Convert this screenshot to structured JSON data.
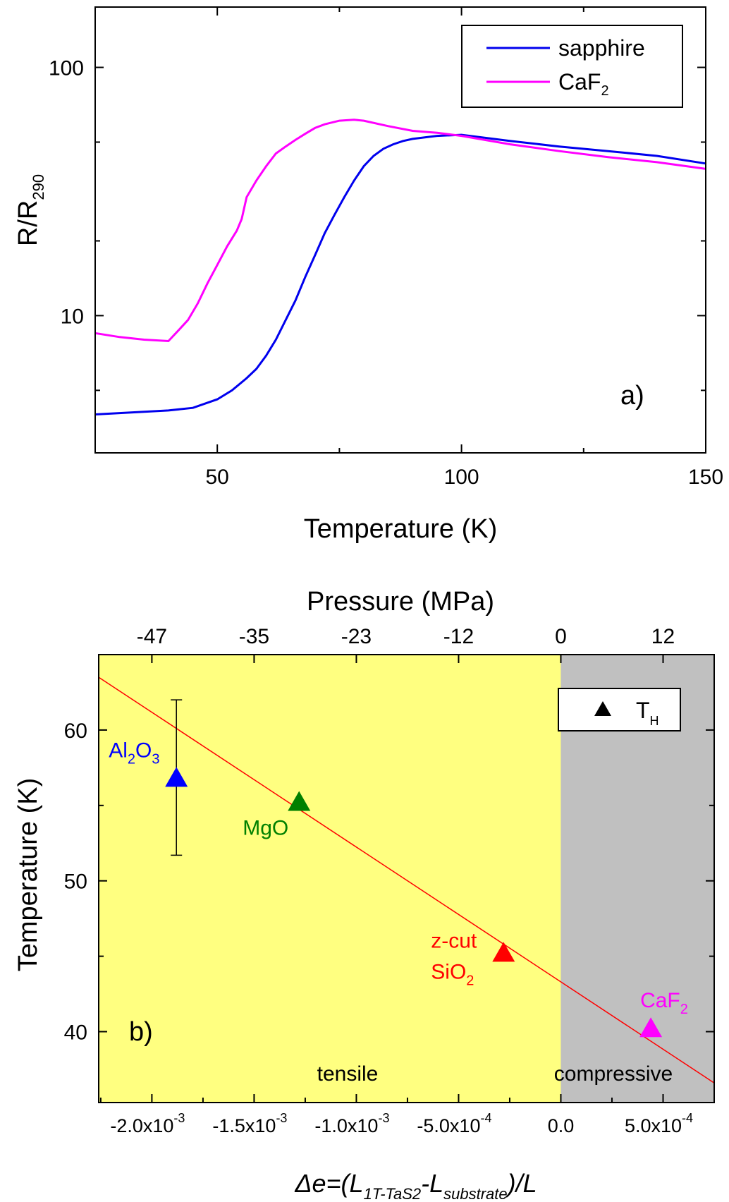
{
  "chart_data": [
    {
      "panel": "a)",
      "type": "line",
      "xlabel": "Temperature (K)",
      "ylabel_main": "R/R",
      "ylabel_sub": "290",
      "xlim": [
        25,
        150
      ],
      "ylim": [
        2.8,
        175
      ],
      "yscale": "log",
      "x_ticks": [
        {
          "value": 50,
          "label": "50"
        },
        {
          "value": 100,
          "label": "100"
        },
        {
          "value": 150,
          "label": "150"
        }
      ],
      "y_ticks": [
        {
          "value": 10,
          "label": "10"
        },
        {
          "value": 100,
          "label": "100"
        }
      ],
      "legend": {
        "position": "top-right",
        "entries": [
          {
            "name": "sapphire",
            "sub": "",
            "color": "#0000ee"
          },
          {
            "name": "CaF",
            "sub": "2",
            "color": "#ff00ff"
          }
        ]
      },
      "series": [
        {
          "name": "sapphire",
          "color": "#0000ee",
          "x": [
            25,
            30,
            35,
            40,
            45,
            50,
            53,
            56,
            58,
            60,
            62,
            64,
            66,
            68,
            70,
            72,
            74,
            76,
            78,
            80,
            82,
            84,
            86,
            88,
            90,
            95,
            100,
            105,
            110,
            120,
            130,
            140,
            150
          ],
          "y": [
            4.0,
            4.05,
            4.1,
            4.15,
            4.25,
            4.6,
            5.0,
            5.6,
            6.1,
            6.9,
            8.0,
            9.6,
            11.5,
            14.3,
            17.5,
            21.5,
            25.5,
            30,
            35,
            40,
            44,
            47,
            49,
            50.5,
            51.5,
            53,
            53.5,
            52,
            50.5,
            48,
            46,
            44,
            41
          ]
        },
        {
          "name": "CaF2",
          "color": "#ff00ff",
          "x": [
            25,
            30,
            35,
            40,
            42,
            44,
            46,
            48,
            50,
            52,
            54,
            55,
            56,
            58,
            60,
            62,
            64,
            66,
            68,
            70,
            72,
            75,
            78,
            80,
            85,
            90,
            95,
            100,
            110,
            120,
            130,
            140,
            150
          ],
          "y": [
            8.5,
            8.2,
            8.0,
            7.9,
            8.7,
            9.6,
            11.2,
            13.5,
            16,
            19,
            22,
            24.5,
            30,
            35,
            40,
            45,
            48,
            51,
            54,
            57,
            59,
            61,
            61.5,
            61,
            58,
            55.5,
            54.5,
            53,
            49,
            46,
            43.5,
            41.5,
            39
          ]
        }
      ]
    },
    {
      "panel": "b)",
      "type": "scatter",
      "xlabel_prefix": "Δe=(L",
      "xlabel_sub1": "1T-TaS2",
      "xlabel_mid": "-L",
      "xlabel_sub2": "substrate",
      "xlabel_suffix": ")/L",
      "ylabel": "Temperature (K)",
      "top_axis_label": "Pressure (MPa)",
      "xlim": [
        -0.00226,
        0.00075
      ],
      "ylim": [
        35.3,
        65
      ],
      "x_ticks": [
        {
          "value": -0.002,
          "label": "-2.0x10",
          "exp": "-3"
        },
        {
          "value": -0.0015,
          "label": "-1.5x10",
          "exp": "-3"
        },
        {
          "value": -0.001,
          "label": "-1.0x10",
          "exp": "-3"
        },
        {
          "value": -0.0005,
          "label": "-5.0x10",
          "exp": "-4"
        },
        {
          "value": 0,
          "label": "0.0",
          "exp": ""
        },
        {
          "value": 0.0005,
          "label": "5.0x10",
          "exp": "-4"
        }
      ],
      "top_ticks": [
        {
          "value": -47,
          "label": "-47"
        },
        {
          "value": -35,
          "label": "-35"
        },
        {
          "value": -23,
          "label": "-23"
        },
        {
          "value": -12,
          "label": "-12"
        },
        {
          "value": 0,
          "label": "0"
        },
        {
          "value": 12,
          "label": "12"
        }
      ],
      "y_ticks": [
        {
          "value": 40,
          "label": "40"
        },
        {
          "value": 50,
          "label": "50"
        },
        {
          "value": 60,
          "label": "60"
        }
      ],
      "regions": [
        {
          "label": "tensile",
          "from": -0.00226,
          "to": 0,
          "color": "#ffff80"
        },
        {
          "label": "compressive",
          "from": 0,
          "to": 0.00075,
          "color": "#c0c0c0"
        }
      ],
      "legend": {
        "position": "top-right",
        "entries": [
          {
            "name": "T",
            "sub": "H",
            "color": "#000000"
          }
        ]
      },
      "fit_line": {
        "color": "#ff0000",
        "x": [
          -0.00226,
          0.00075
        ],
        "y": [
          63.5,
          36.6
        ]
      },
      "points": [
        {
          "name": "Al2O3",
          "label_parts": [
            [
              "Al",
              ""
            ],
            [
              "2",
              "sub"
            ],
            [
              "O",
              ""
            ],
            [
              "3",
              "sub"
            ]
          ],
          "x": -0.00188,
          "y": 56.8,
          "yerr_low": 51.7,
          "yerr_high": 62.0,
          "color": "#0000ff"
        },
        {
          "name": "MgO",
          "label_parts": [
            [
              "MgO",
              ""
            ]
          ],
          "x": -0.00128,
          "y": 55.2,
          "color": "#008000"
        },
        {
          "name": "z-cut SiO2",
          "label_parts": [
            [
              "z-cut",
              ""
            ]
          ],
          "label_parts2": [
            [
              "SiO",
              ""
            ],
            [
              "2",
              "sub"
            ]
          ],
          "x": -0.00028,
          "y": 45.2,
          "color": "#ff0000"
        },
        {
          "name": "CaF2",
          "label_parts": [
            [
              "CaF",
              ""
            ],
            [
              "2",
              "sub"
            ]
          ],
          "x": 0.00044,
          "y": 40.2,
          "color": "#ff00ff"
        }
      ]
    }
  ]
}
